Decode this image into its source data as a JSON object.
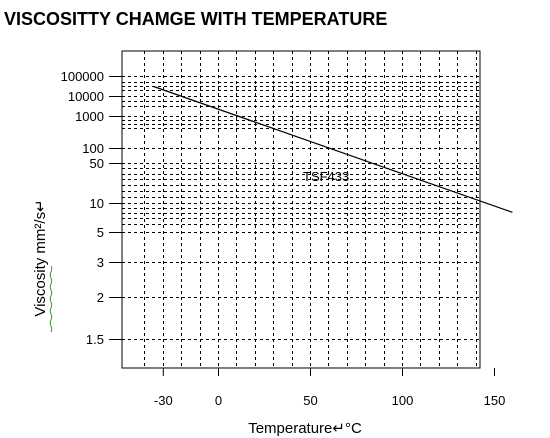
{
  "chart_data": {
    "type": "line",
    "title": "VISCOSITTY CHAMGE WITH TEMPERATURE",
    "xlabel": "Temperature↵°C",
    "ylabel": "Viscosity   mm²/s↵",
    "x_ticks": [
      "-30",
      "0",
      "50",
      "100",
      "150"
    ],
    "y_ticks": [
      "100000",
      "10000",
      "1000",
      "100",
      "50",
      "10",
      "5",
      "3",
      "2",
      "1.5"
    ],
    "series": [
      {
        "name": "TSF433",
        "x": [
          -35,
          160
        ],
        "y": [
          30000,
          8
        ]
      }
    ],
    "grid": true
  }
}
